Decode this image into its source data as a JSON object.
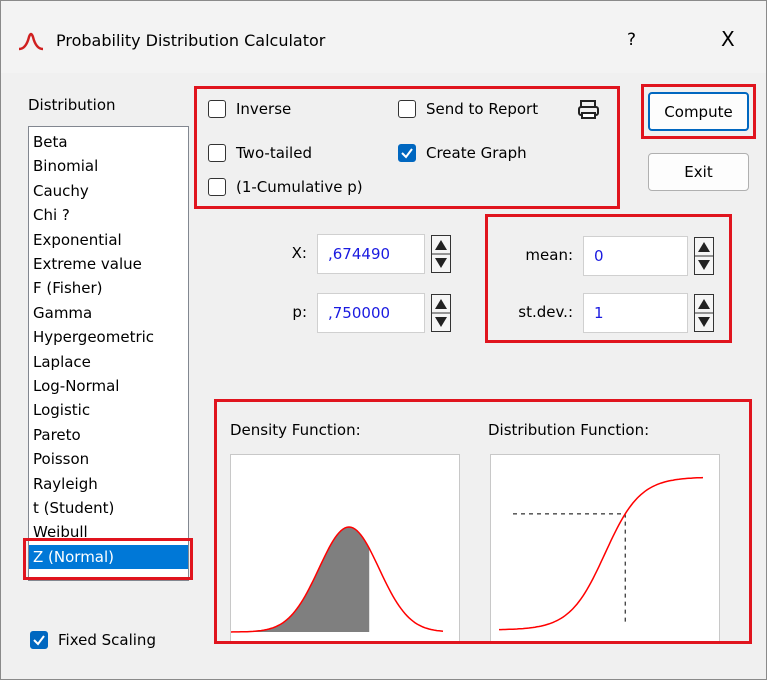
{
  "window": {
    "title": "Probability Distribution Calculator",
    "help": "?",
    "close": "X"
  },
  "distribution": {
    "label": "Distribution",
    "items": [
      "Beta",
      "Binomial",
      "Cauchy",
      "Chi ?",
      "Exponential",
      "Extreme value",
      "F (Fisher)",
      "Gamma",
      "Hypergeometric",
      "Laplace",
      "Log-Normal",
      "Logistic",
      "Pareto",
      "Poisson",
      "Rayleigh",
      "t (Student)",
      "Weibull",
      "Z (Normal)"
    ],
    "selected": 17
  },
  "options": [
    {
      "label": "Inverse",
      "checked": false
    },
    {
      "label": "Two-tailed",
      "checked": false
    },
    {
      "label": "(1-Cumulative p)",
      "checked": false
    },
    {
      "label": "Send to Report",
      "checked": false
    },
    {
      "label": "Create Graph",
      "checked": true
    }
  ],
  "buttons": {
    "compute": "Compute",
    "exit": "Exit"
  },
  "fields": [
    {
      "label": "X:",
      "value": ",674490"
    },
    {
      "label": "p:",
      "value": ",750000"
    },
    {
      "label": "mean:",
      "value": "0"
    },
    {
      "label": "st.dev.:",
      "value": "1"
    }
  ],
  "graphs": {
    "density": "Density Function:",
    "distribution": "Distribution Function:"
  },
  "fixed_scaling": {
    "label": "Fixed Scaling",
    "checked": true
  }
}
